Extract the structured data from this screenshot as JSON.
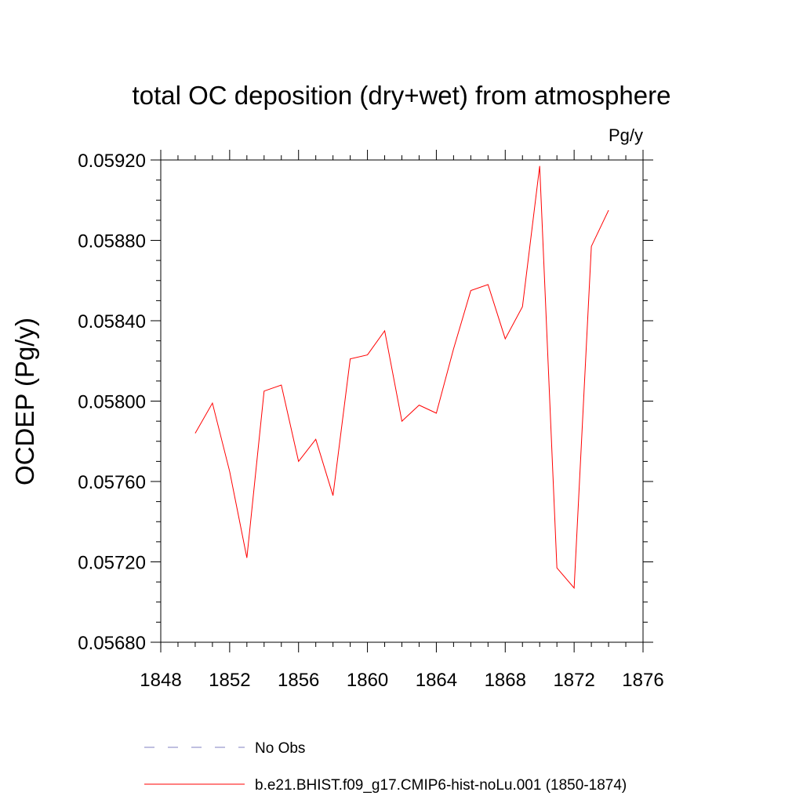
{
  "chart_data": {
    "type": "line",
    "title": "total OC deposition (dry+wet) from atmosphere",
    "units": "Pg/y",
    "xlabel": "",
    "ylabel": "OCDEP  (Pg/y)",
    "xlim": [
      1848,
      1876
    ],
    "ylim": [
      0.0568,
      0.0592
    ],
    "x_ticks": [
      "1848",
      "1852",
      "1856",
      "1860",
      "1864",
      "1868",
      "1872",
      "1876"
    ],
    "y_ticks": [
      "0.05680",
      "0.05720",
      "0.05760",
      "0.05800",
      "0.05840",
      "0.05880",
      "0.05920"
    ],
    "grid": false,
    "legend_position": "bottom",
    "series": [
      {
        "name": "b.e21.BHIST.f09_g17.CMIP6-hist-noLu.001 (1850-1874)",
        "color": "#ff0000",
        "style": "solid",
        "x": [
          1850,
          1851,
          1852,
          1853,
          1854,
          1855,
          1856,
          1857,
          1858,
          1859,
          1860,
          1861,
          1862,
          1863,
          1864,
          1865,
          1866,
          1867,
          1868,
          1869,
          1870,
          1871,
          1872,
          1873,
          1874
        ],
        "y": [
          0.05784,
          0.05799,
          0.05765,
          0.05722,
          0.05805,
          0.05808,
          0.0577,
          0.05781,
          0.05753,
          0.05821,
          0.05823,
          0.05835,
          0.0579,
          0.05798,
          0.05794,
          0.05826,
          0.05855,
          0.05858,
          0.05831,
          0.05847,
          0.05917,
          0.05717,
          0.05707,
          0.05877,
          0.05895
        ]
      }
    ],
    "legend": [
      {
        "label": "No Obs",
        "color": "#8080c0",
        "style": "dashed"
      },
      {
        "label": "b.e21.BHIST.f09_g17.CMIP6-hist-noLu.001 (1850-1874)",
        "color": "#ff0000",
        "style": "solid"
      }
    ]
  }
}
